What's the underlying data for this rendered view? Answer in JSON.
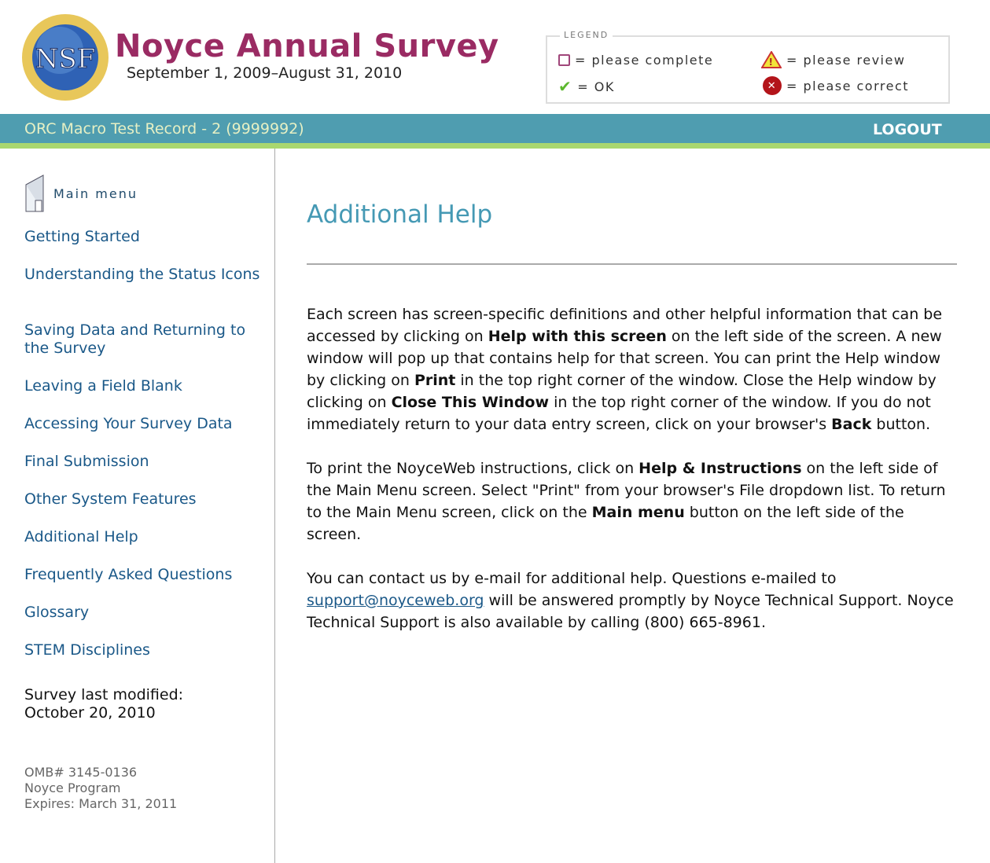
{
  "header": {
    "title": "Noyce Annual Survey",
    "dates": "September 1, 2009–August 31, 2010",
    "logo_text": "NSF"
  },
  "legend": {
    "title": "LEGEND",
    "items": [
      {
        "icon": "empty-box-icon",
        "label": "= please complete"
      },
      {
        "icon": "warning-triangle-icon",
        "label": "= please review"
      },
      {
        "icon": "check-icon",
        "label": "= OK"
      },
      {
        "icon": "red-x-circle-icon",
        "label": "= please correct"
      }
    ]
  },
  "bar": {
    "record": "ORC Macro Test Record - 2 (9999992)",
    "logout": "LOGOUT"
  },
  "colors": {
    "title": "#9a2b63",
    "bar": "#4f9db0",
    "accent_green": "#a9d76f",
    "heading": "#4599b4",
    "link": "#1a5888"
  },
  "sidebar": {
    "main_menu": "Main menu",
    "items": [
      "Getting Started",
      "Understanding the Status Icons",
      "Saving Data and Returning to the Survey",
      "Leaving a Field Blank",
      "Accessing Your Survey Data",
      "Final Submission",
      "Other System Features",
      "Additional Help",
      "Frequently Asked Questions",
      "Glossary",
      "STEM Disciplines"
    ],
    "modified_label": "Survey last modified:",
    "modified_date": "October 20, 2010",
    "omb": "OMB# 3145-0136",
    "program": "Noyce Program",
    "expires": "Expires: March 31, 2011"
  },
  "main": {
    "title": "Additional Help",
    "p1": [
      "Each screen has screen-specific definitions and other helpful information that can be accessed by clicking on ",
      "Help with this screen",
      " on the left side of the screen. A new window will pop up that contains help for that screen. You can print the Help window by clicking on ",
      "Print",
      " in the top right corner of the window. Close the Help window by clicking on ",
      "Close This Window",
      " in the top right corner of the window. If you do not immediately return to your data entry screen, click on your browser's ",
      "Back",
      " button."
    ],
    "p2": [
      "To print the NoyceWeb instructions, click on ",
      "Help & Instructions",
      " on the left side of the Main Menu screen. Select \"Print\" from your browser's File dropdown list. To return to the Main Menu screen, click on the ",
      "Main menu",
      " button on the left side of the screen."
    ],
    "p3": [
      "You can contact us by e-mail for additional help. Questions e-mailed to ",
      "support@noyceweb.org",
      " will be answered promptly by Noyce Technical Support. Noyce Technical Support is also available by calling (800) 665-8961."
    ]
  }
}
